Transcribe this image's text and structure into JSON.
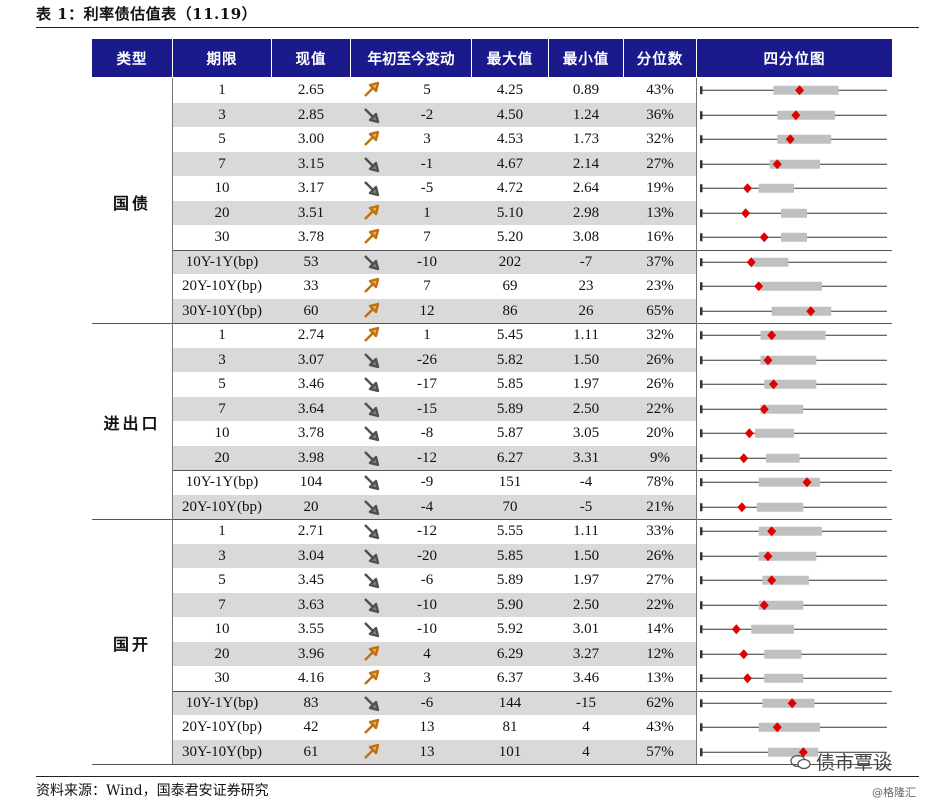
{
  "title": "表 1：利率债估值表（11.19）",
  "source": "资料来源：Wind，国泰君安证券研究",
  "watermark": "债市覃谈",
  "watermark_sub": "@格隆汇",
  "headers": [
    "类型",
    "期限",
    "现值",
    "年初至今变动",
    "最大值",
    "最小值",
    "分位数",
    "四分位图"
  ],
  "colors": {
    "header_bg": "#1a1a8c",
    "shade": "#d9d9d9",
    "up_arrow": "#f0b040",
    "down_arrow": "#808080",
    "marker": "#e00000",
    "iqr_box": "#c0c0c0"
  },
  "groups": [
    {
      "name": "国债",
      "rows": [
        {
          "term": "1",
          "value": "2.65",
          "dir": "up",
          "change": "5",
          "max": "4.25",
          "min": "0.89",
          "pct": "43%",
          "q": {
            "l": 0,
            "b1": 0.39,
            "b2": 0.74,
            "m": 0.53,
            "r": 1
          }
        },
        {
          "term": "3",
          "value": "2.85",
          "dir": "down",
          "change": "-2",
          "max": "4.50",
          "min": "1.24",
          "pct": "36%",
          "q": {
            "l": 0,
            "b1": 0.41,
            "b2": 0.72,
            "m": 0.51,
            "r": 1
          }
        },
        {
          "term": "5",
          "value": "3.00",
          "dir": "up",
          "change": "3",
          "max": "4.53",
          "min": "1.73",
          "pct": "32%",
          "q": {
            "l": 0,
            "b1": 0.41,
            "b2": 0.7,
            "m": 0.48,
            "r": 1
          }
        },
        {
          "term": "7",
          "value": "3.15",
          "dir": "down",
          "change": "-1",
          "max": "4.67",
          "min": "2.14",
          "pct": "27%",
          "q": {
            "l": 0,
            "b1": 0.37,
            "b2": 0.64,
            "m": 0.41,
            "r": 1
          }
        },
        {
          "term": "10",
          "value": "3.17",
          "dir": "down",
          "change": "-5",
          "max": "4.72",
          "min": "2.64",
          "pct": "19%",
          "q": {
            "l": 0,
            "b1": 0.31,
            "b2": 0.5,
            "m": 0.25,
            "r": 1
          }
        },
        {
          "term": "20",
          "value": "3.51",
          "dir": "up",
          "change": "1",
          "max": "5.10",
          "min": "2.98",
          "pct": "13%",
          "q": {
            "l": 0,
            "b1": 0.43,
            "b2": 0.57,
            "m": 0.24,
            "r": 1
          }
        },
        {
          "term": "30",
          "value": "3.78",
          "dir": "up",
          "change": "7",
          "max": "5.20",
          "min": "3.08",
          "pct": "16%",
          "q": {
            "l": 0,
            "b1": 0.43,
            "b2": 0.57,
            "m": 0.34,
            "r": 1
          }
        },
        {
          "term": "10Y-1Y(bp)",
          "value": "53",
          "dir": "down",
          "change": "-10",
          "max": "202",
          "min": "-7",
          "pct": "37%",
          "q": {
            "l": 0,
            "b1": 0.27,
            "b2": 0.47,
            "m": 0.27,
            "r": 1
          }
        },
        {
          "term": "20Y-10Y(bp)",
          "value": "33",
          "dir": "up",
          "change": "7",
          "max": "69",
          "min": "23",
          "pct": "23%",
          "q": {
            "l": 0,
            "b1": 0.32,
            "b2": 0.65,
            "m": 0.31,
            "r": 1
          }
        },
        {
          "term": "30Y-10Y(bp)",
          "value": "60",
          "dir": "up",
          "change": "12",
          "max": "86",
          "min": "26",
          "pct": "65%",
          "q": {
            "l": 0,
            "b1": 0.38,
            "b2": 0.7,
            "m": 0.59,
            "r": 1
          }
        }
      ]
    },
    {
      "name": "进出口",
      "rows": [
        {
          "term": "1",
          "value": "2.74",
          "dir": "up",
          "change": "1",
          "max": "5.45",
          "min": "1.11",
          "pct": "32%",
          "q": {
            "l": 0,
            "b1": 0.32,
            "b2": 0.67,
            "m": 0.38,
            "r": 1
          }
        },
        {
          "term": "3",
          "value": "3.07",
          "dir": "down",
          "change": "-26",
          "max": "5.82",
          "min": "1.50",
          "pct": "26%",
          "q": {
            "l": 0,
            "b1": 0.32,
            "b2": 0.62,
            "m": 0.36,
            "r": 1
          }
        },
        {
          "term": "5",
          "value": "3.46",
          "dir": "down",
          "change": "-17",
          "max": "5.85",
          "min": "1.97",
          "pct": "26%",
          "q": {
            "l": 0,
            "b1": 0.34,
            "b2": 0.62,
            "m": 0.39,
            "r": 1
          }
        },
        {
          "term": "7",
          "value": "3.64",
          "dir": "down",
          "change": "-15",
          "max": "5.89",
          "min": "2.50",
          "pct": "22%",
          "q": {
            "l": 0,
            "b1": 0.32,
            "b2": 0.55,
            "m": 0.34,
            "r": 1
          }
        },
        {
          "term": "10",
          "value": "3.78",
          "dir": "down",
          "change": "-8",
          "max": "5.87",
          "min": "3.05",
          "pct": "20%",
          "q": {
            "l": 0,
            "b1": 0.29,
            "b2": 0.5,
            "m": 0.26,
            "r": 1
          }
        },
        {
          "term": "20",
          "value": "3.98",
          "dir": "down",
          "change": "-12",
          "max": "6.27",
          "min": "3.31",
          "pct": "9%",
          "q": {
            "l": 0,
            "b1": 0.35,
            "b2": 0.53,
            "m": 0.23,
            "r": 1
          }
        },
        {
          "term": "10Y-1Y(bp)",
          "value": "104",
          "dir": "down",
          "change": "-9",
          "max": "151",
          "min": "-4",
          "pct": "78%",
          "q": {
            "l": 0,
            "b1": 0.31,
            "b2": 0.64,
            "m": 0.57,
            "r": 1
          }
        },
        {
          "term": "20Y-10Y(bp)",
          "value": "20",
          "dir": "down",
          "change": "-4",
          "max": "70",
          "min": "-5",
          "pct": "21%",
          "q": {
            "l": 0,
            "b1": 0.3,
            "b2": 0.55,
            "m": 0.22,
            "r": 1
          }
        }
      ]
    },
    {
      "name": "国开",
      "rows": [
        {
          "term": "1",
          "value": "2.71",
          "dir": "down",
          "change": "-12",
          "max": "5.55",
          "min": "1.11",
          "pct": "33%",
          "q": {
            "l": 0,
            "b1": 0.31,
            "b2": 0.65,
            "m": 0.38,
            "r": 1
          }
        },
        {
          "term": "3",
          "value": "3.04",
          "dir": "down",
          "change": "-20",
          "max": "5.85",
          "min": "1.50",
          "pct": "26%",
          "q": {
            "l": 0,
            "b1": 0.31,
            "b2": 0.62,
            "m": 0.36,
            "r": 1
          }
        },
        {
          "term": "5",
          "value": "3.45",
          "dir": "down",
          "change": "-6",
          "max": "5.89",
          "min": "1.97",
          "pct": "27%",
          "q": {
            "l": 0,
            "b1": 0.33,
            "b2": 0.58,
            "m": 0.38,
            "r": 1
          }
        },
        {
          "term": "7",
          "value": "3.63",
          "dir": "down",
          "change": "-10",
          "max": "5.90",
          "min": "2.50",
          "pct": "22%",
          "q": {
            "l": 0,
            "b1": 0.31,
            "b2": 0.55,
            "m": 0.34,
            "r": 1
          }
        },
        {
          "term": "10",
          "value": "3.55",
          "dir": "down",
          "change": "-10",
          "max": "5.92",
          "min": "3.01",
          "pct": "14%",
          "q": {
            "l": 0,
            "b1": 0.27,
            "b2": 0.5,
            "m": 0.19,
            "r": 1
          }
        },
        {
          "term": "20",
          "value": "3.96",
          "dir": "up",
          "change": "4",
          "max": "6.29",
          "min": "3.27",
          "pct": "12%",
          "q": {
            "l": 0,
            "b1": 0.34,
            "b2": 0.54,
            "m": 0.23,
            "r": 1
          }
        },
        {
          "term": "30",
          "value": "4.16",
          "dir": "up",
          "change": "3",
          "max": "6.37",
          "min": "3.46",
          "pct": "13%",
          "q": {
            "l": 0,
            "b1": 0.34,
            "b2": 0.55,
            "m": 0.25,
            "r": 1
          }
        },
        {
          "term": "10Y-1Y(bp)",
          "value": "83",
          "dir": "down",
          "change": "-6",
          "max": "144",
          "min": "-15",
          "pct": "62%",
          "q": {
            "l": 0,
            "b1": 0.33,
            "b2": 0.61,
            "m": 0.49,
            "r": 1
          }
        },
        {
          "term": "20Y-10Y(bp)",
          "value": "42",
          "dir": "up",
          "change": "13",
          "max": "81",
          "min": "4",
          "pct": "43%",
          "q": {
            "l": 0,
            "b1": 0.31,
            "b2": 0.64,
            "m": 0.41,
            "r": 1
          }
        },
        {
          "term": "30Y-10Y(bp)",
          "value": "61",
          "dir": "up",
          "change": "13",
          "max": "101",
          "min": "4",
          "pct": "57%",
          "q": {
            "l": 0,
            "b1": 0.36,
            "b2": 0.63,
            "m": 0.55,
            "r": 1
          }
        }
      ]
    }
  ]
}
